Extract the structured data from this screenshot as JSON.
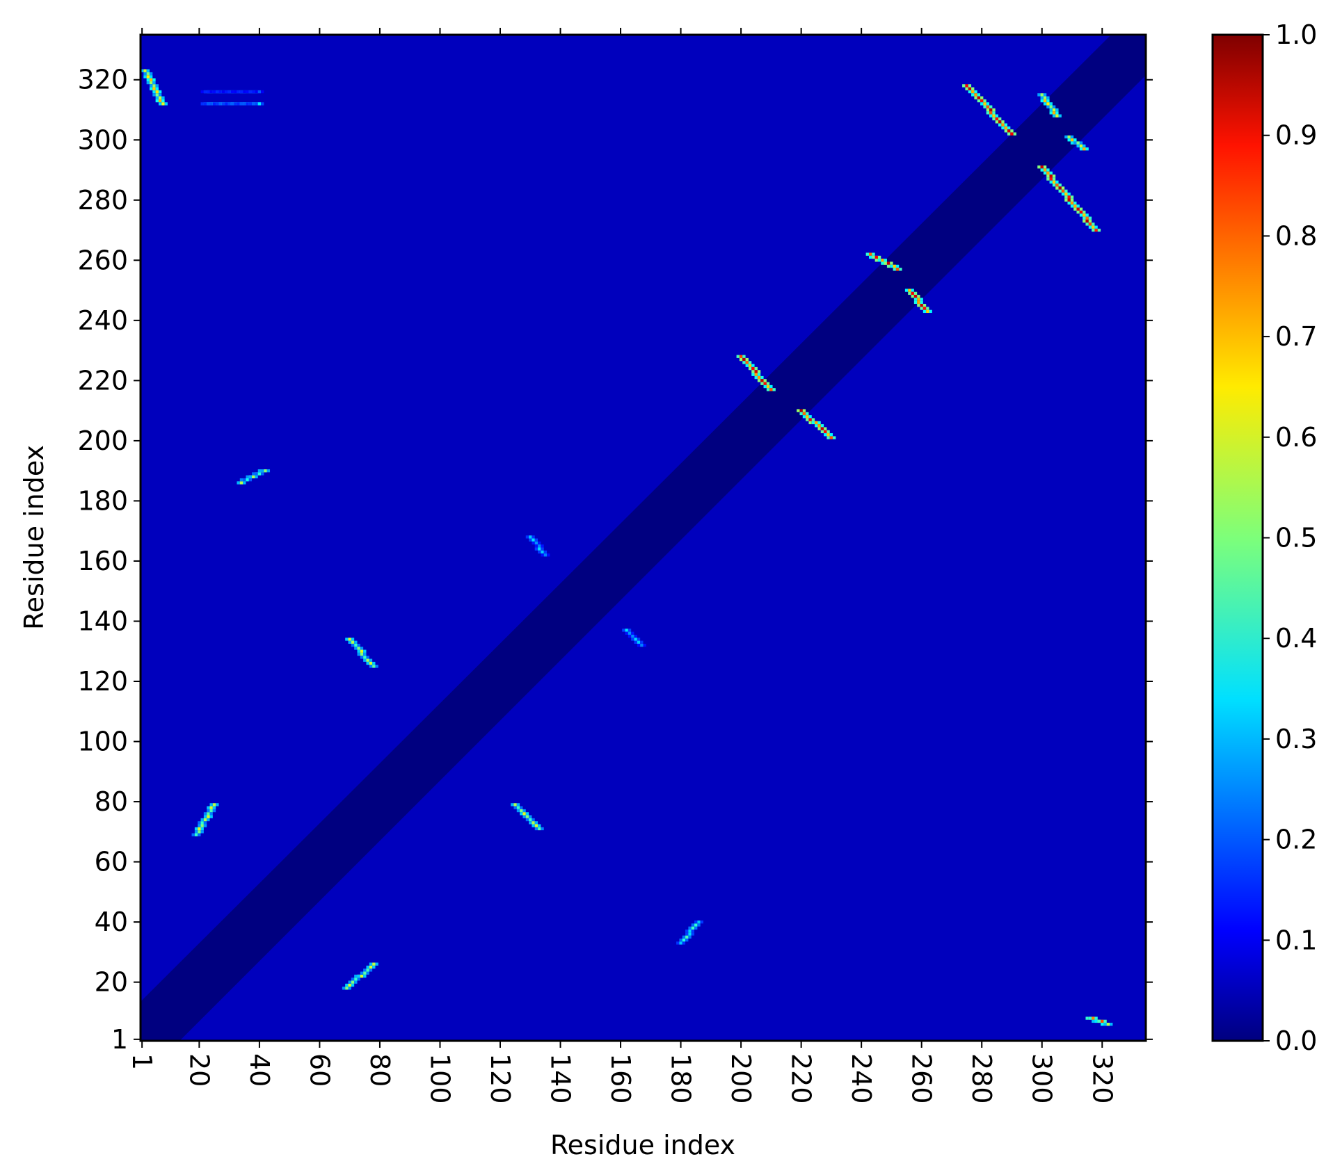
{
  "chart_data": {
    "type": "heatmap",
    "title": "",
    "xlabel": "Residue index",
    "ylabel": "Residue index",
    "n_residues": 334,
    "xlim": [
      1,
      334
    ],
    "ylim": [
      1,
      334
    ],
    "x_ticks": [
      "1",
      "20",
      "40",
      "60",
      "80",
      "100",
      "120",
      "140",
      "160",
      "180",
      "200",
      "220",
      "240",
      "260",
      "280",
      "300",
      "320"
    ],
    "y_ticks": [
      "1",
      "20",
      "40",
      "60",
      "80",
      "100",
      "120",
      "140",
      "160",
      "180",
      "200",
      "220",
      "240",
      "260",
      "280",
      "300",
      "320"
    ],
    "x_tick_rotation": "vertical",
    "colorbar": {
      "colormap": "jet",
      "range": [
        0.0,
        1.0
      ],
      "ticks": [
        "0.0",
        "0.1",
        "0.2",
        "0.3",
        "0.4",
        "0.5",
        "0.6",
        "0.7",
        "0.8",
        "0.9",
        "1.0"
      ],
      "placement": "right"
    },
    "background_value": 0.06,
    "diagonal_band": {
      "half_width_residues": 12,
      "value": 0.0
    },
    "features": [
      {
        "x": [
          200,
          210
        ],
        "y": [
          228,
          217
        ],
        "value": 0.95
      },
      {
        "x": [
          220,
          230
        ],
        "y": [
          210,
          201
        ],
        "value": 0.95
      },
      {
        "x": [
          243,
          252
        ],
        "y": [
          262,
          257
        ],
        "value": 0.95
      },
      {
        "x": [
          256,
          262
        ],
        "y": [
          250,
          243
        ],
        "value": 0.95
      },
      {
        "x": [
          275,
          290
        ],
        "y": [
          318,
          302
        ],
        "value": 0.95
      },
      {
        "x": [
          300,
          318
        ],
        "y": [
          291,
          270
        ],
        "value": 0.95
      },
      {
        "x": [
          300,
          305
        ],
        "y": [
          315,
          308
        ],
        "value": 0.7
      },
      {
        "x": [
          309,
          314
        ],
        "y": [
          301,
          297
        ],
        "value": 0.7
      },
      {
        "x": [
          70,
          78
        ],
        "y": [
          134,
          125
        ],
        "value": 0.6
      },
      {
        "x": [
          125,
          133
        ],
        "y": [
          79,
          71
        ],
        "value": 0.6
      },
      {
        "x": [
          19,
          25
        ],
        "y": [
          69,
          79
        ],
        "value": 0.6
      },
      {
        "x": [
          69,
          78
        ],
        "y": [
          18,
          26
        ],
        "value": 0.6
      },
      {
        "x": [
          34,
          42
        ],
        "y": [
          186,
          190
        ],
        "value": 0.55
      },
      {
        "x": [
          2,
          8
        ],
        "y": [
          323,
          312
        ],
        "value": 0.7
      },
      {
        "x": [
          180,
          186
        ],
        "y": [
          33,
          40
        ],
        "value": 0.45
      },
      {
        "x": [
          130,
          135
        ],
        "y": [
          168,
          162
        ],
        "value": 0.35
      },
      {
        "x": [
          162,
          167
        ],
        "y": [
          137,
          132
        ],
        "value": 0.35
      },
      {
        "x": [
          22,
          40
        ],
        "y": [
          312,
          312
        ],
        "value": 0.4
      },
      {
        "x": [
          22,
          40
        ],
        "y": [
          316,
          316
        ],
        "value": 0.3
      },
      {
        "x": [
          316,
          322
        ],
        "y": [
          8,
          6
        ],
        "value": 0.8
      }
    ]
  }
}
